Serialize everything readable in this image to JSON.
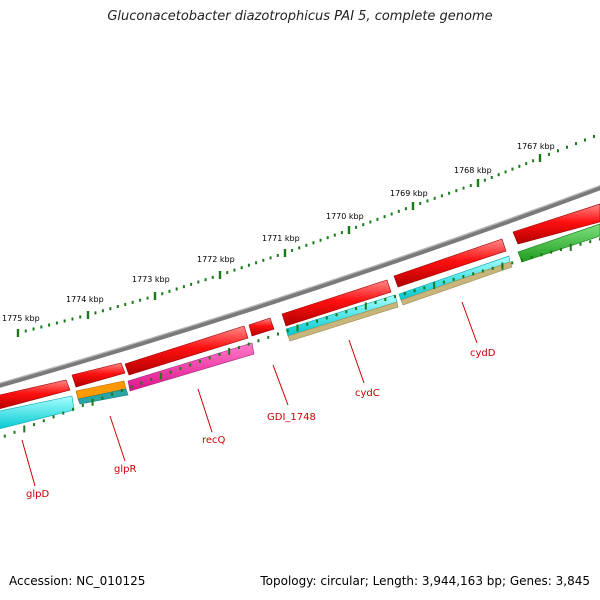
{
  "title": "Gluconacetobacter diazotrophicus PAI 5, complete genome",
  "footer": {
    "accession": "Accession: NC_010125",
    "topology": "Topology: circular; Length: 3,944,163 bp; Genes: 3,845"
  },
  "colors": {
    "backbone": "#7a7a7a",
    "scale_tick": "#1a7a1a",
    "label_line": "#cc0000",
    "cds_forward": "#ee0000",
    "cds_reverse": "#ee0000",
    "gene_green": "#22bb22",
    "gene_cyan": "#00e5e5",
    "gene_tan": "#c8b57a",
    "gene_orange": "#ff9900",
    "gene_teal": "#2aa5a5",
    "gene_magenta": "#ff1aa6",
    "gene_purple": "#a0257f"
  },
  "scale": {
    "unit": "kbp",
    "labels": [
      "1767 kbp",
      "1768 kbp",
      "1769 kbp",
      "1770 kbp",
      "1771 kbp",
      "1772 kbp",
      "1773 kbp",
      "1774 kbp",
      "1775 kbp"
    ]
  },
  "genes": [
    {
      "name": "glpD",
      "color_key": "gene_cyan"
    },
    {
      "name": "glpR",
      "color_key": "gene_orange"
    },
    {
      "name": "recQ",
      "color_key": "gene_magenta"
    },
    {
      "name": "GDI_1748",
      "color_key": "cds_forward"
    },
    {
      "name": "cydC",
      "color_key": "gene_cyan"
    },
    {
      "name": "cydD",
      "color_key": "gene_tan"
    }
  ]
}
